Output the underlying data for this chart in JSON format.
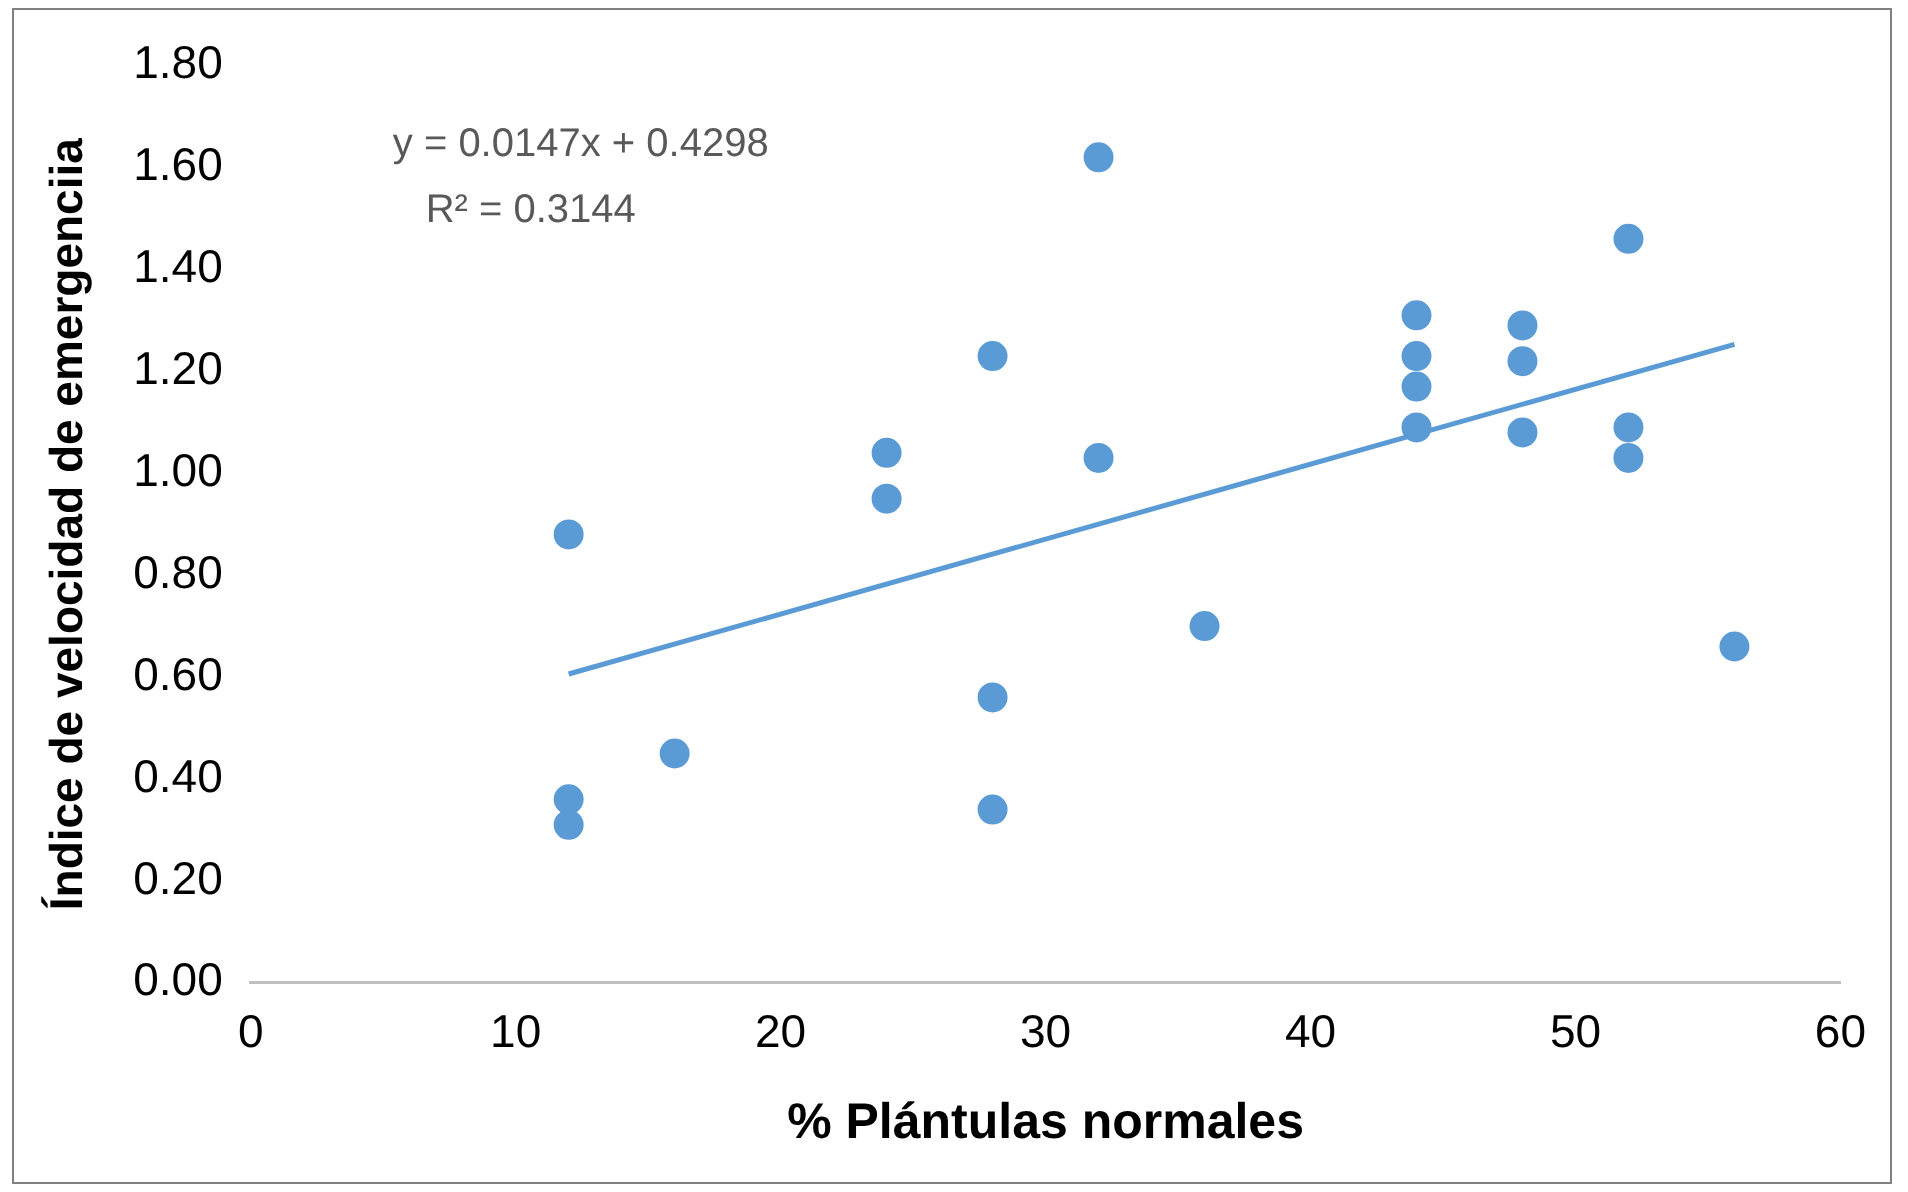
{
  "chart_data": {
    "type": "scatter",
    "xlabel": "% Plántulas normales",
    "ylabel": "Índice de velocidad de emergenciia",
    "xlim": [
      0,
      60
    ],
    "xticks": [
      0,
      10,
      20,
      30,
      40,
      50,
      60
    ],
    "ylim": [
      0,
      1.8
    ],
    "yticks": [
      {
        "value": 0,
        "label": "0.00"
      },
      {
        "value": 0.2,
        "label": "0.20"
      },
      {
        "value": 0.4,
        "label": "0.40"
      },
      {
        "value": 0.6,
        "label": "0.60"
      },
      {
        "value": 0.8,
        "label": "0.80"
      },
      {
        "value": 1.0,
        "label": "1.00"
      },
      {
        "value": 1.2,
        "label": "1.20"
      },
      {
        "value": 1.4,
        "label": "1.40"
      },
      {
        "value": 1.6,
        "label": "1.60"
      },
      {
        "value": 1.8,
        "label": "1.80"
      }
    ],
    "grid": false,
    "legend": false,
    "marker": "circle",
    "annotations": [
      "y = 0.0147x + 0.4298",
      "R² = 0.3144"
    ],
    "series": [
      {
        "color": "#5b9bd5",
        "x": [
          12,
          12,
          12,
          16,
          24,
          24,
          28,
          28,
          28,
          32,
          32,
          36,
          44,
          44,
          44,
          44,
          48,
          48,
          48,
          52,
          52,
          52,
          56
        ],
        "values": [
          0.88,
          0.36,
          0.31,
          0.45,
          1.04,
          0.95,
          1.23,
          0.56,
          0.34,
          1.62,
          1.03,
          0.7,
          1.31,
          1.23,
          1.17,
          1.09,
          1.29,
          1.22,
          1.08,
          1.46,
          1.09,
          1.03,
          0.66
        ]
      },
      {
        "type": "line",
        "color": "#5b9bd5",
        "line_style": "solid",
        "marker": "none",
        "x": [
          12,
          56
        ],
        "values": [
          0.606,
          1.253
        ]
      }
    ]
  }
}
